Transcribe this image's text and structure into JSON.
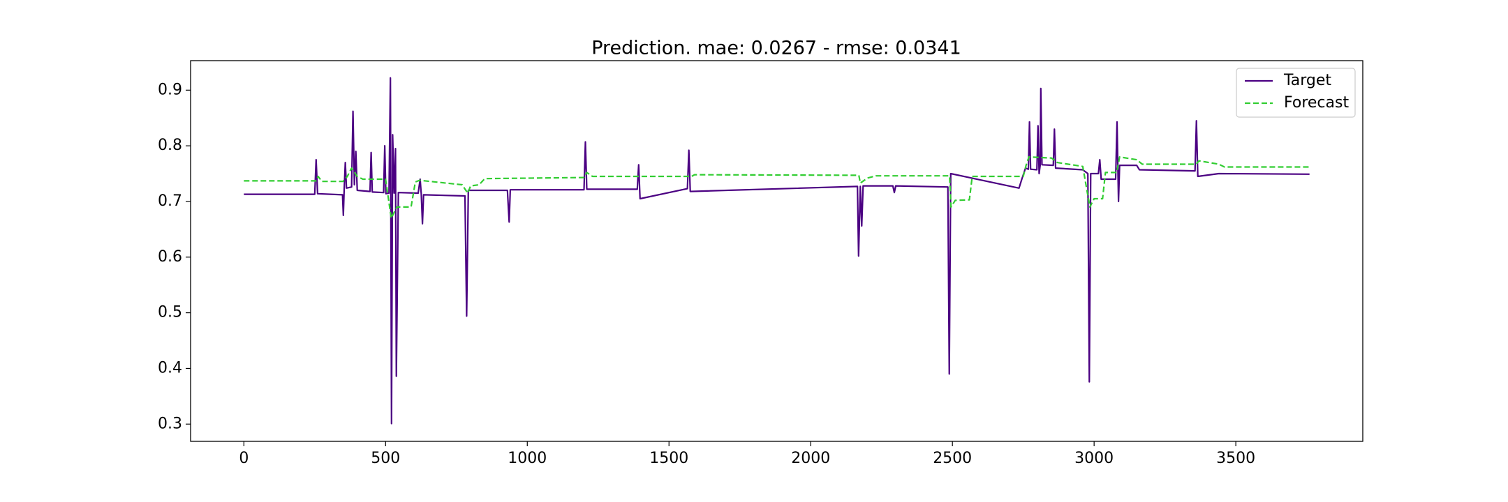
{
  "chart_data": {
    "type": "line",
    "title": "Prediction. mae: 0.0267 - rmse: 0.0341",
    "xlim": [
      -188,
      3948
    ],
    "ylim": [
      0.269,
      0.953
    ],
    "xticks": [
      0,
      500,
      1000,
      1500,
      2000,
      2500,
      3000,
      3500
    ],
    "yticks": [
      0.3,
      0.4,
      0.5,
      0.6,
      0.7,
      0.8,
      0.9
    ],
    "legend": "upper right",
    "series": [
      {
        "name": "Target",
        "color": "#4b0082",
        "dash": "solid",
        "x": [
          0,
          250,
          255,
          260,
          348,
          351,
          354,
          358,
          362,
          380,
          385,
          390,
          395,
          400,
          445,
          449,
          453,
          493,
          497,
          501,
          512,
          517,
          521,
          525,
          530,
          535,
          538,
          545,
          615,
          622,
          626,
          630,
          634,
          780,
          786,
          792,
          930,
          936,
          940,
          1200,
          1205,
          1210,
          1388,
          1393,
          1398,
          1565,
          1570,
          1575,
          2165,
          2169,
          2175,
          2180,
          2185,
          2290,
          2295,
          2300,
          2484,
          2489,
          2494,
          2735,
          2745,
          2758,
          2768,
          2772,
          2776,
          2798,
          2802,
          2806,
          2810,
          2812,
          2816,
          2856,
          2860,
          2864,
          2960,
          2978,
          2983,
          2988,
          3015,
          3020,
          3025,
          3076,
          3081,
          3086,
          3090,
          3150,
          3160,
          3356,
          3361,
          3366,
          3440,
          3760
        ],
        "values": [
          0.713,
          0.713,
          0.775,
          0.714,
          0.712,
          0.675,
          0.722,
          0.77,
          0.724,
          0.726,
          0.862,
          0.73,
          0.79,
          0.72,
          0.718,
          0.788,
          0.717,
          0.716,
          0.8,
          0.714,
          0.715,
          0.922,
          0.301,
          0.82,
          0.715,
          0.795,
          0.386,
          0.716,
          0.715,
          0.74,
          0.713,
          0.66,
          0.712,
          0.71,
          0.494,
          0.72,
          0.72,
          0.663,
          0.721,
          0.721,
          0.807,
          0.722,
          0.722,
          0.766,
          0.705,
          0.723,
          0.792,
          0.718,
          0.727,
          0.602,
          0.727,
          0.656,
          0.728,
          0.728,
          0.716,
          0.728,
          0.726,
          0.39,
          0.75,
          0.724,
          0.74,
          0.76,
          0.758,
          0.843,
          0.758,
          0.757,
          0.836,
          0.75,
          0.766,
          0.903,
          0.766,
          0.765,
          0.83,
          0.76,
          0.757,
          0.75,
          0.376,
          0.75,
          0.75,
          0.775,
          0.74,
          0.74,
          0.843,
          0.7,
          0.765,
          0.765,
          0.757,
          0.755,
          0.845,
          0.745,
          0.75,
          0.749
        ]
      },
      {
        "name": "Forecast",
        "color": "#32cd32",
        "dash": "dashed",
        "x": [
          0,
          255,
          262,
          275,
          350,
          365,
          380,
          400,
          420,
          500,
          520,
          540,
          590,
          605,
          620,
          770,
          790,
          800,
          830,
          850,
          1200,
          1210,
          1230,
          1580,
          1590,
          2170,
          2175,
          2200,
          2230,
          2490,
          2495,
          2510,
          2560,
          2570,
          2750,
          2760,
          2770,
          2850,
          2870,
          2960,
          2985,
          3000,
          3030,
          3040,
          3080,
          3090,
          3150,
          3170,
          3360,
          3370,
          3440,
          3460,
          3760
        ],
        "values": [
          0.737,
          0.737,
          0.745,
          0.736,
          0.736,
          0.745,
          0.76,
          0.745,
          0.74,
          0.74,
          0.67,
          0.69,
          0.69,
          0.735,
          0.738,
          0.73,
          0.715,
          0.728,
          0.73,
          0.741,
          0.743,
          0.752,
          0.745,
          0.745,
          0.748,
          0.747,
          0.733,
          0.742,
          0.746,
          0.746,
          0.69,
          0.702,
          0.703,
          0.745,
          0.745,
          0.765,
          0.78,
          0.778,
          0.77,
          0.763,
          0.69,
          0.705,
          0.705,
          0.752,
          0.752,
          0.78,
          0.775,
          0.767,
          0.767,
          0.773,
          0.767,
          0.762,
          0.762
        ]
      }
    ]
  }
}
